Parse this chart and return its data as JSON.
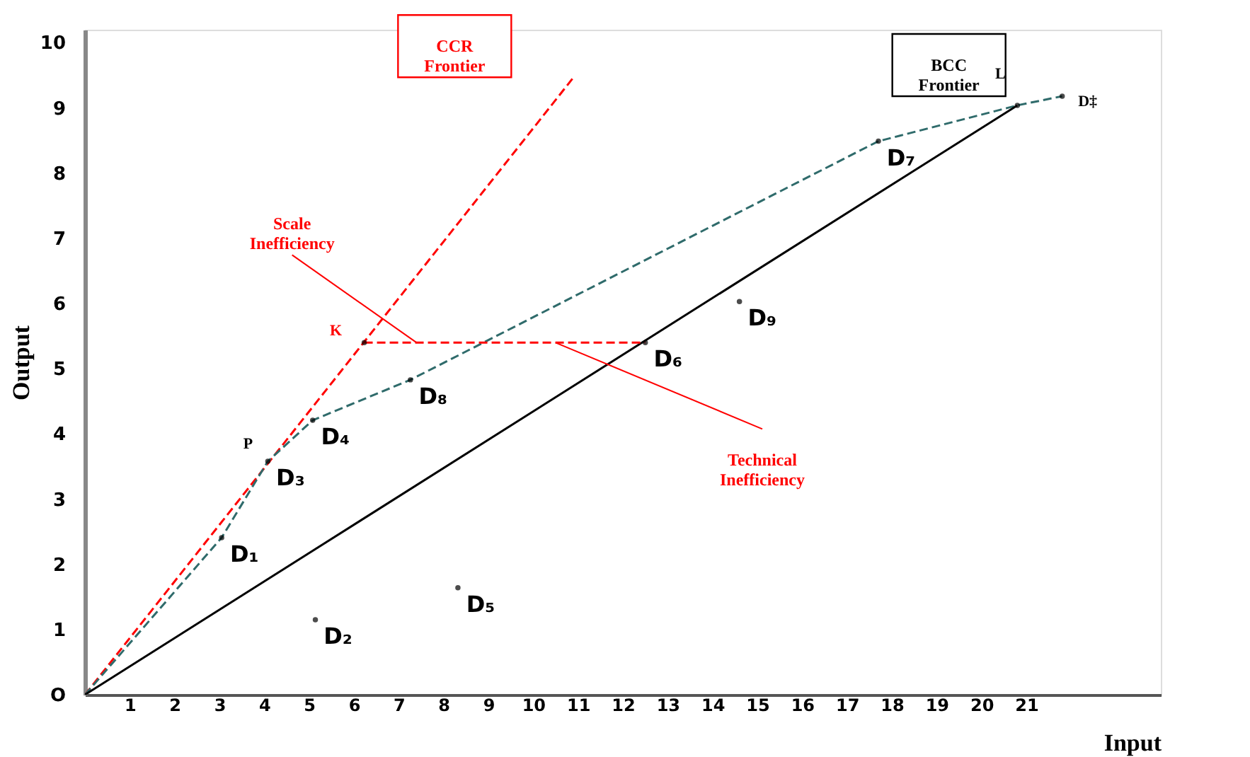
{
  "chart_data": {
    "type": "line",
    "xlabel": "Input",
    "ylabel": "Output",
    "xlim": [
      0,
      24
    ],
    "ylim": [
      0,
      10.2
    ],
    "xticks": [
      1,
      2,
      3,
      4,
      5,
      6,
      7,
      8,
      9,
      10,
      11,
      12,
      13,
      14,
      15,
      16,
      17,
      18,
      19,
      20,
      21
    ],
    "yticks": [
      {
        "value": 0,
        "label": "O"
      },
      1,
      2,
      3,
      4,
      5,
      6,
      7,
      8,
      9,
      10
    ],
    "grid": false,
    "series": [
      {
        "name": "CCR Frontier",
        "color": "#ff0000",
        "line_style": "dashed",
        "x": [
          0,
          10.9
        ],
        "values": [
          0,
          9.47
        ]
      },
      {
        "name": "BCC Frontier",
        "color": "#2f6b6b",
        "line_style": "dashed",
        "x": [
          0,
          3.05,
          4.08,
          5.08,
          7.26,
          17.7,
          20.8,
          21.8
        ],
        "values": [
          0,
          2.41,
          3.58,
          4.21,
          4.83,
          8.49,
          9.04,
          9.18
        ]
      },
      {
        "color": "#000000",
        "line_style": "solid",
        "x": [
          0,
          20.8
        ],
        "values": [
          0,
          9.04
        ]
      },
      {
        "color": "#ff0000",
        "line_style": "dashed",
        "x": [
          6.23,
          8.57,
          12.5
        ],
        "values": [
          5.4,
          5.4,
          5.4
        ]
      },
      {
        "type": "scatter",
        "color": "#000000",
        "marker": "circle",
        "x": [
          3.05,
          5.14,
          4.08,
          5.08,
          8.32,
          12.5,
          17.7,
          7.26,
          14.6,
          21.8,
          6.23,
          20.8
        ],
        "values": [
          2.41,
          1.15,
          3.58,
          4.21,
          1.64,
          5.4,
          8.49,
          4.83,
          6.03,
          9.18,
          5.4,
          9.04
        ]
      }
    ],
    "annotations": [
      {
        "text": "Scale Inefficiency",
        "x": 7.4,
        "y": 5.4
      },
      {
        "text": "Technical Inefficiency",
        "x": 10.5,
        "y": 5.4
      },
      {
        "text": "K",
        "x": 6.23,
        "y": 5.4
      },
      {
        "text": "P",
        "x": 4.08,
        "y": 3.58
      },
      {
        "text": "L",
        "x": 20.8,
        "y": 9.04
      },
      {
        "text": "D₁",
        "x": 3.05,
        "y": 2.41
      },
      {
        "text": "D₂",
        "x": 5.14,
        "y": 1.15
      },
      {
        "text": "D₃",
        "x": 4.08,
        "y": 3.58
      },
      {
        "text": "D₄",
        "x": 5.08,
        "y": 4.21
      },
      {
        "text": "D₅",
        "x": 8.32,
        "y": 1.64
      },
      {
        "text": "D₆",
        "x": 12.5,
        "y": 5.4
      },
      {
        "text": "D₇",
        "x": 17.7,
        "y": 8.49
      },
      {
        "text": "D₈",
        "x": 7.26,
        "y": 4.83
      },
      {
        "text": "D₉",
        "x": 14.6,
        "y": 6.03
      },
      {
        "text": "D‡",
        "x": 21.8,
        "y": 9.18
      }
    ]
  }
}
